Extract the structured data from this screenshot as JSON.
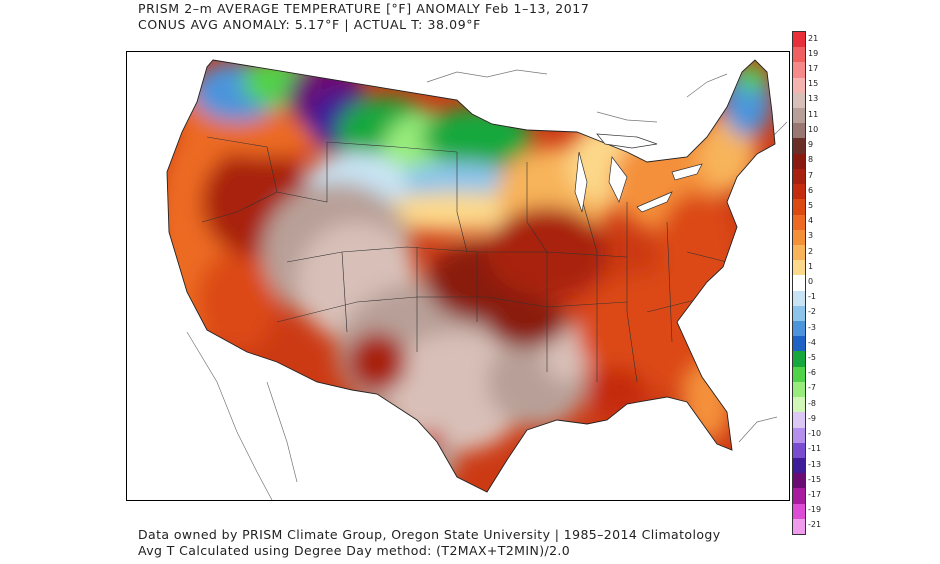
{
  "header": {
    "title": "PRISM 2–m AVERAGE TEMPERATURE [°F] ANOMALY Feb 1–13, 2017",
    "subtitle": "CONUS AVG ANOMALY: 5.17°F | ACTUAL T: 38.09°F"
  },
  "footer": {
    "line1": "Data owned by PRISM Climate Group, Oregon State University | 1985–2014 Climatology",
    "line2": "Avg T Calculated using Degree Day method: (T2MAX+T2MIN)/2.0"
  },
  "legend": {
    "labels": [
      "21",
      "19",
      "17",
      "15",
      "13",
      "11",
      "10",
      "9",
      "8",
      "7",
      "6",
      "5",
      "4",
      "3",
      "2",
      "1",
      "0",
      "-1",
      "-2",
      "-3",
      "-4",
      "-5",
      "-6",
      "-7",
      "-8",
      "-9",
      "-10",
      "-11",
      "-13",
      "-15",
      "-17",
      "-19",
      "-21"
    ],
    "colors": [
      "#e8303a",
      "#f06060",
      "#f48a8a",
      "#f6b4b0",
      "#d8c0b8",
      "#b8a098",
      "#987870",
      "#6a3028",
      "#8a1a10",
      "#a82010",
      "#c42c10",
      "#dc4a14",
      "#ec6a24",
      "#f4903a",
      "#f8b45a",
      "#fcd88a",
      "#ffffff",
      "#c8e4f4",
      "#8cc4ec",
      "#4c94dc",
      "#1e64c4",
      "#16a83c",
      "#52d248",
      "#98ec7c",
      "#d0f6b8",
      "#dcc8f4",
      "#b490ec",
      "#7a4cd0",
      "#3e1c9a",
      "#6a0c74",
      "#a81ca0",
      "#dc4cd4",
      "#f09cec"
    ]
  }
}
